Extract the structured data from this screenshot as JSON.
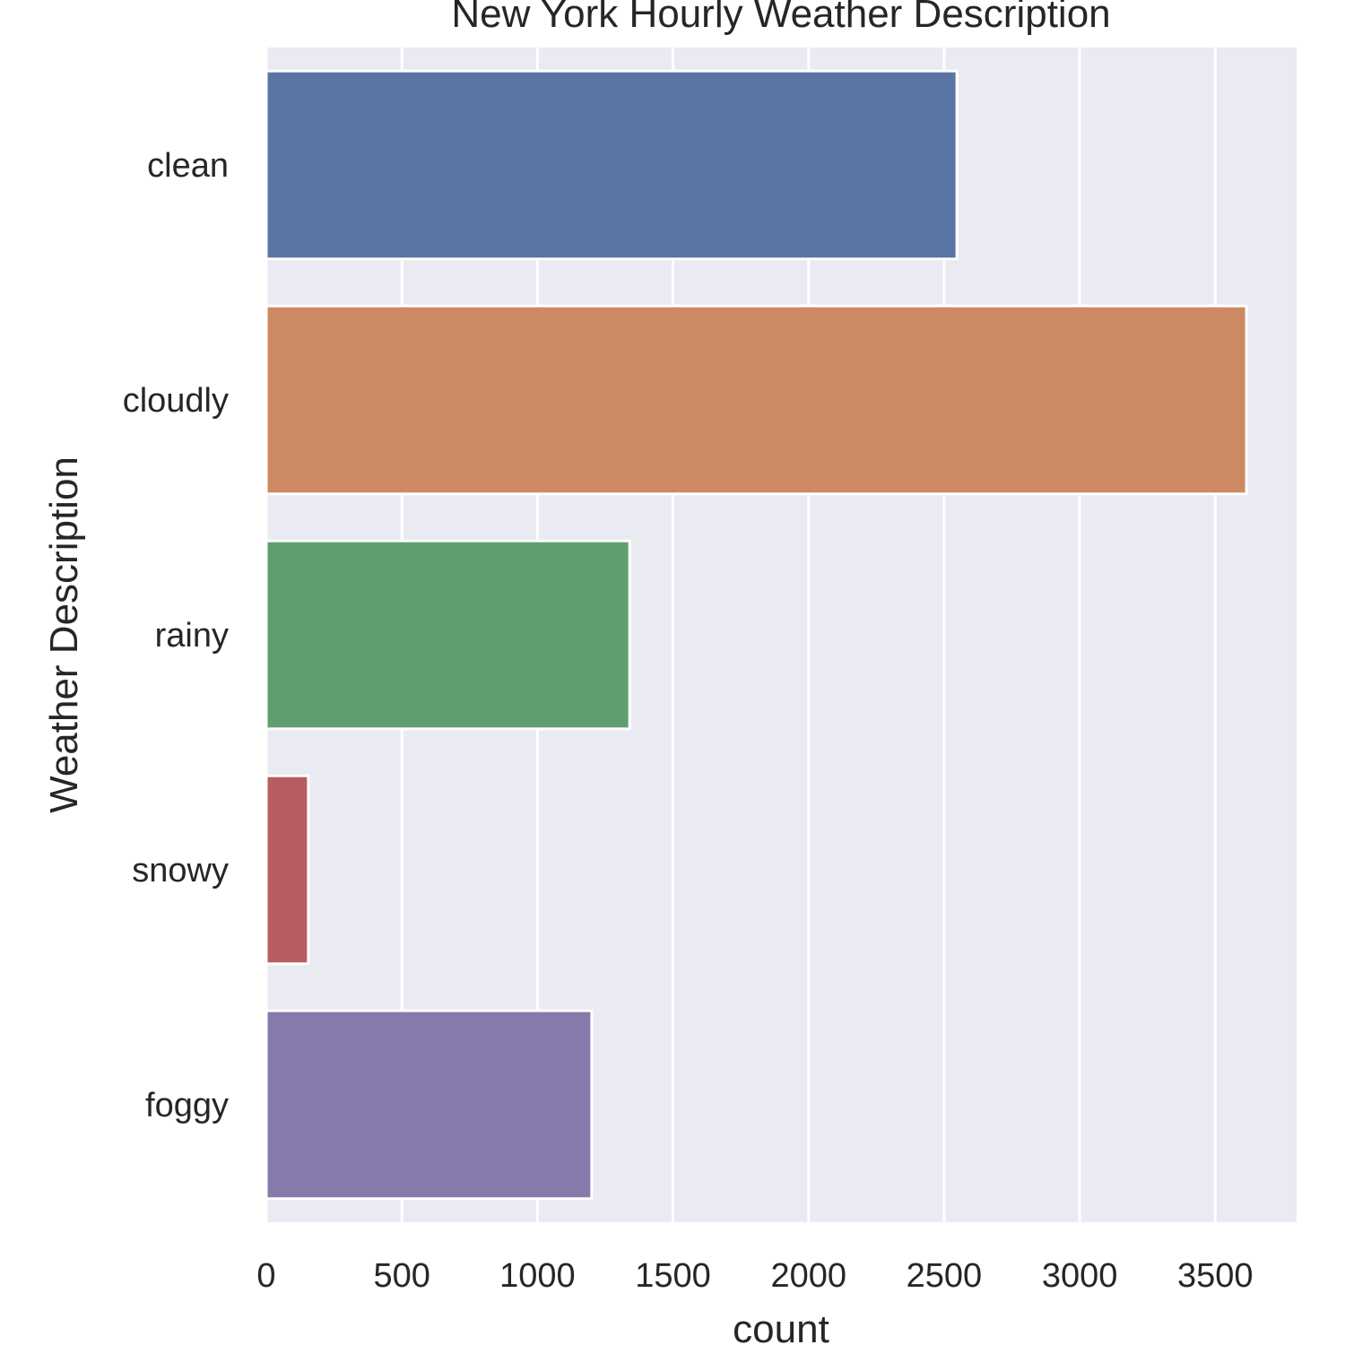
{
  "chart_data": {
    "type": "bar",
    "orientation": "horizontal",
    "title": "New York Hourly Weather Description",
    "xlabel": "count",
    "ylabel": "Weather Description",
    "categories": [
      "clean",
      "cloudly",
      "rainy",
      "snowy",
      "foggy"
    ],
    "values": [
      2547,
      3615,
      1340,
      155,
      1200
    ],
    "colors": [
      "#5875a4",
      "#cc8963",
      "#5f9e6e",
      "#b55d60",
      "#857aab"
    ],
    "xlim": [
      0,
      3800
    ],
    "xticks": [
      0,
      500,
      1000,
      1500,
      2000,
      2500,
      3000,
      3500
    ],
    "grid": true,
    "background": "#eaeaf2",
    "legend": "none"
  }
}
